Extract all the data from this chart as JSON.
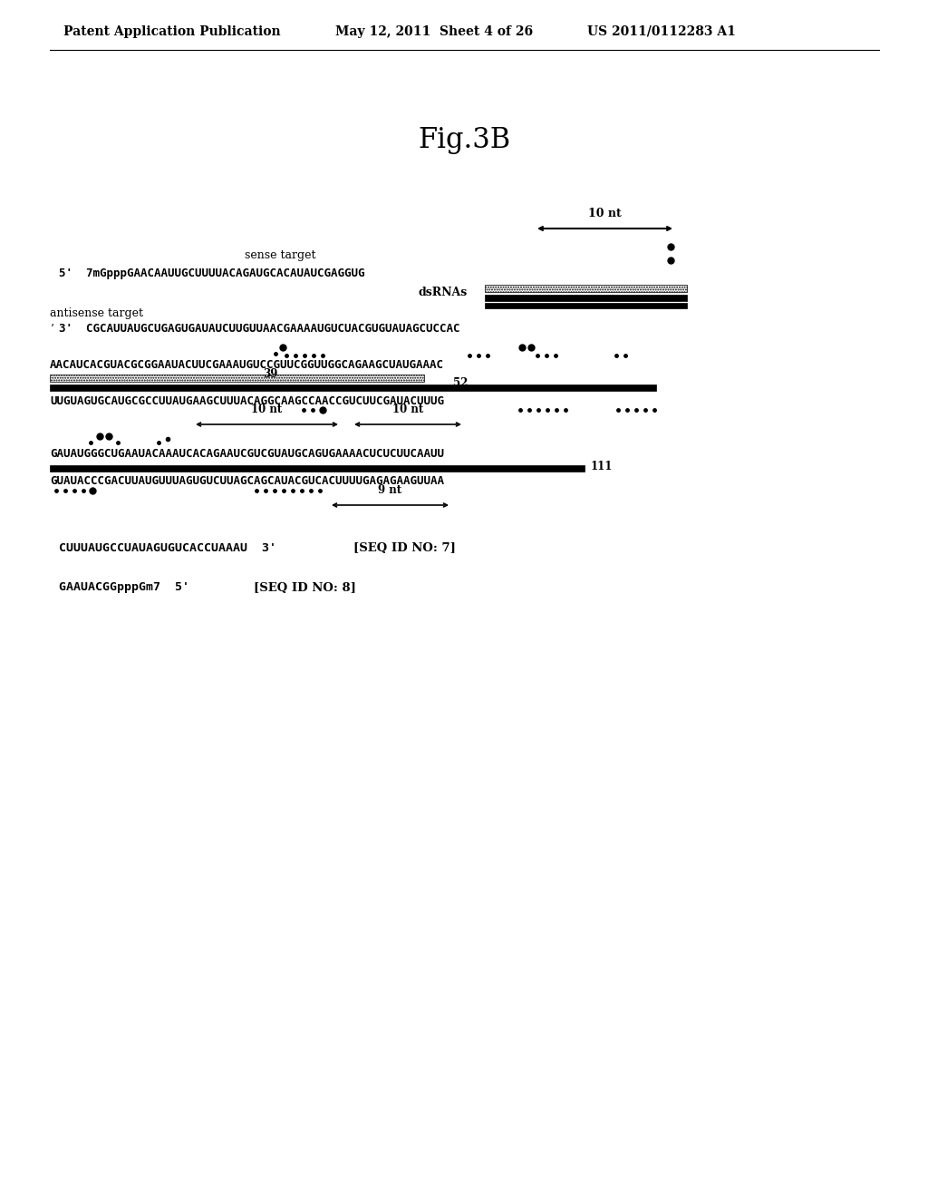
{
  "bg_color": "#ffffff",
  "header_left": "Patent Application Publication",
  "header_mid": "May 12, 2011  Sheet 4 of 26",
  "header_right": "US 2011/0112283 A1",
  "fig_title": "Fig.3B",
  "sense_label": "sense target",
  "sense_seq": "5'  7mGpppGAACAAUUGCUUUUACAGAUGCACAUAUCGAGGUG",
  "dsRNAs_label": "dsRNAs",
  "antisense_label": "antisense target",
  "antisense_seq": "3'  CGCAUUAUGCUGAGUGAUAUCUUGUUAACGAAAAUGUCUACGUGUAUAGCUCCAC",
  "seq1_top": "AACAUCACGUACGCGGAAUACUUCGAAAUGUCCGUUCGGUUGGCAGAAGCUAUGAAAC",
  "label_39": "39",
  "label_52": "52",
  "seq1_bot": "UUGUAGUGCAUGCGCCUUAUGAAGCUUUACAGGCAAGCCAACCGUCUUCGAUACUUUG",
  "seq2_top": "GAUAUGGGCUGAAUACAAAUCACAGAAUCGUCGUAUGCAGUGAAAACUCUCUUCAAUU",
  "label_111": "111",
  "seq2_bot": "GUAUACCCGACUUAUGUUUAGUGUCUUAGCAGCAUACGUCACUUUUGAGAGAAGUUAA",
  "seq_id7_seq": "CUUUAUGCCUAUAGUGUCACCUAAAU  3'",
  "seq_id7_label": "[SEQ ID NO: 7]",
  "seq_id8_seq": "GAAUACGGpppGm7  5'",
  "seq_id8_label": "[SEQ ID NO: 8]"
}
